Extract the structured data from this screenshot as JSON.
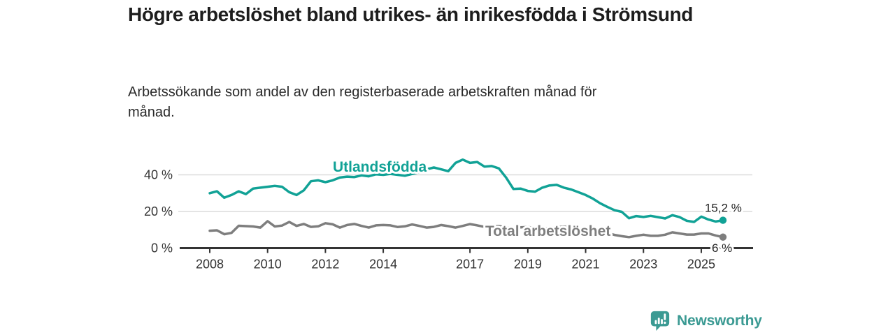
{
  "chart_data": {
    "type": "line",
    "title": "Högre arbetslöshet bland utrikes- än inrikesfödda i Strömsund",
    "subtitle": "Arbetssökande som andel av den registerbaserade arbetskraften månad för månad.",
    "y_unit": "%",
    "ylim": [
      0,
      50
    ],
    "x_domain": [
      2008,
      2025.75
    ],
    "grid": "horizontal-only",
    "legend_position": "inline-labels-on-lines",
    "y_ticks": [
      {
        "value": 0,
        "label": "0 %"
      },
      {
        "value": 20,
        "label": "20 %"
      },
      {
        "value": 40,
        "label": "40 %"
      }
    ],
    "x_ticks": [
      2008,
      2010,
      2012,
      2014,
      2017,
      2019,
      2021,
      2023,
      2025
    ],
    "x": [
      2008,
      2008.25,
      2008.5,
      2008.75,
      2009,
      2009.25,
      2009.5,
      2009.75,
      2010,
      2010.25,
      2010.5,
      2010.75,
      2011,
      2011.25,
      2011.5,
      2011.75,
      2012,
      2012.25,
      2012.5,
      2012.75,
      2013,
      2013.25,
      2013.5,
      2013.75,
      2014,
      2014.25,
      2014.5,
      2014.75,
      2015,
      2015.25,
      2015.5,
      2015.75,
      2016,
      2016.25,
      2016.5,
      2016.75,
      2017,
      2017.25,
      2017.5,
      2017.75,
      2018,
      2018.25,
      2018.5,
      2018.75,
      2019,
      2019.25,
      2019.5,
      2019.75,
      2020,
      2020.25,
      2020.5,
      2020.75,
      2021,
      2021.25,
      2021.5,
      2021.75,
      2022,
      2022.25,
      2022.5,
      2022.75,
      2023,
      2023.25,
      2023.5,
      2023.75,
      2024,
      2024.25,
      2024.5,
      2024.75,
      2025,
      2025.25,
      2025.5,
      2025.75
    ],
    "series": [
      {
        "name": "Utlandsfödda",
        "color": "#11a296",
        "end_label": "15,2 %",
        "values": [
          30,
          31,
          27.5,
          29,
          31,
          29.5,
          32.5,
          33,
          33.5,
          34,
          33.5,
          30.5,
          29,
          31.5,
          36.5,
          37,
          36,
          37,
          38.5,
          39,
          38.8,
          39.7,
          39.2,
          40.3,
          40,
          40.5,
          40,
          39.5,
          40.5,
          41.5,
          43,
          44,
          43,
          42,
          46.5,
          48.3,
          46.5,
          47,
          44.5,
          44.8,
          43.5,
          38.5,
          32.3,
          32.5,
          31.2,
          30.8,
          33,
          34.2,
          34.5,
          33,
          32,
          30.5,
          29,
          27,
          24.5,
          22.5,
          20.7,
          19.8,
          16.3,
          17.5,
          17,
          17.6,
          16.9,
          16.2,
          18,
          16.9,
          14.9,
          14.3,
          17.2,
          15.6,
          14.5,
          15.2
        ]
      },
      {
        "name": "Total arbetslöshet",
        "color": "#7e7e7e",
        "end_label": "6 %",
        "values": [
          9.5,
          9.7,
          7.6,
          8.3,
          12.2,
          12,
          11.8,
          11.2,
          14.7,
          11.8,
          12.3,
          14.3,
          12.1,
          13.2,
          11.6,
          11.9,
          13.6,
          13,
          11.2,
          12.6,
          13.2,
          12.1,
          11.2,
          12.4,
          12.6,
          12.4,
          11.5,
          11.9,
          12.9,
          12.1,
          11.2,
          11.6,
          12.6,
          12,
          11.2,
          12.1,
          13.1,
          12.4,
          11.6,
          11.9,
          12,
          11.4,
          11,
          11.3,
          11.5,
          11,
          10.7,
          11,
          11.4,
          11.7,
          11.3,
          10.8,
          10.3,
          9.6,
          9,
          8.2,
          7.2,
          6.5,
          6,
          6.7,
          7.3,
          6.7,
          6.7,
          7.3,
          8.6,
          8,
          7.4,
          7.4,
          8,
          8,
          6.9,
          6
        ]
      }
    ]
  },
  "footer": {
    "brand": "Newsworthy",
    "logo_icon": "bar-chart-speech-bubble"
  },
  "colors": {
    "accent_teal": "#11a296",
    "series_gray": "#7e7e7e",
    "brand_teal": "#3b9a93",
    "grid": "#dbdbdb",
    "axis": "#333333",
    "title_text": "#1d1d1d"
  }
}
